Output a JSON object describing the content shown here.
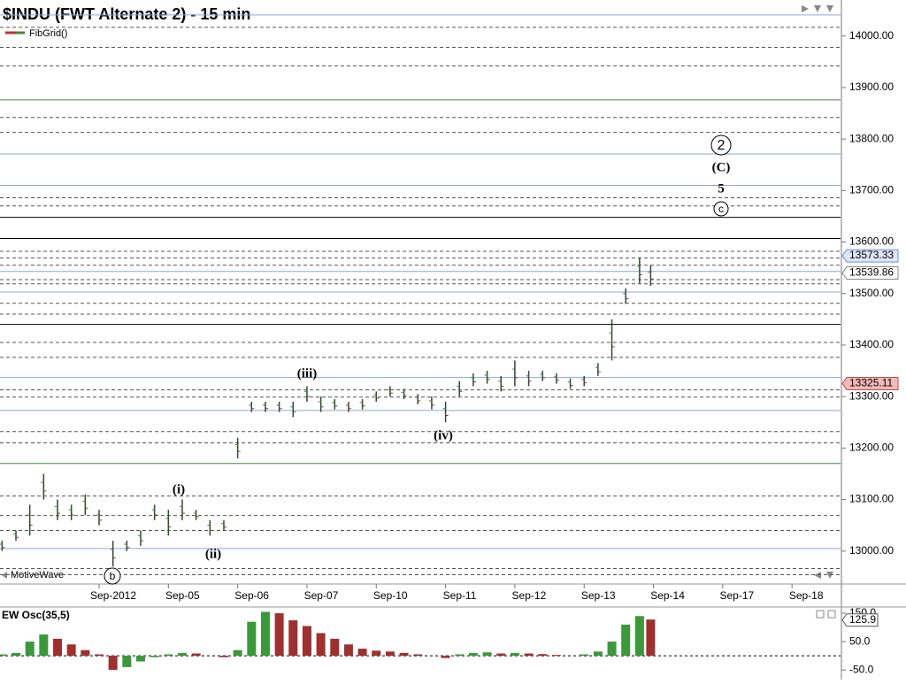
{
  "chart_data": [
    {
      "type": "ohlc",
      "title": "$INDU (FWT Alternate 2) - 15 min",
      "legend": "FibGrid()",
      "watermark": "MotiveWave",
      "xlim": [
        -1.43,
        10.7
      ],
      "ylim": [
        12936,
        14070
      ],
      "xticks": [
        {
          "value": 0,
          "label": "Sep-2012"
        },
        {
          "value": 1,
          "label": "Sep-05"
        },
        {
          "value": 2,
          "label": "Sep-06"
        },
        {
          "value": 3,
          "label": "Sep-07"
        },
        {
          "value": 4,
          "label": "Sep-10"
        },
        {
          "value": 5,
          "label": "Sep-11"
        },
        {
          "value": 6,
          "label": "Sep-12"
        },
        {
          "value": 7,
          "label": "Sep-13"
        },
        {
          "value": 8,
          "label": "Sep-14"
        },
        {
          "value": 9,
          "label": "Sep-17"
        },
        {
          "value": 10,
          "label": "Sep-18"
        }
      ],
      "yticks": [
        {
          "value": 13000,
          "label": "13000.00"
        },
        {
          "value": 13100,
          "label": "13100.00"
        },
        {
          "value": 13200,
          "label": "13200.00"
        },
        {
          "value": 13300,
          "label": "13300.00"
        },
        {
          "value": 13400,
          "label": "13400.00"
        },
        {
          "value": 13500,
          "label": "13500.00"
        },
        {
          "value": 13600,
          "label": "13600.00"
        },
        {
          "value": 13700,
          "label": "13700.00"
        },
        {
          "value": 13800,
          "label": "13800.00"
        },
        {
          "value": 13900,
          "label": "13900.00"
        },
        {
          "value": 14000,
          "label": "14000.00"
        }
      ],
      "x": [
        -1.4,
        -1.2,
        -1.0,
        -0.8,
        -0.6,
        -0.4,
        -0.2,
        0.0,
        0.2,
        0.4,
        0.6,
        0.8,
        1.0,
        1.2,
        1.4,
        1.6,
        1.8,
        2.0,
        2.2,
        2.4,
        2.6,
        2.8,
        3.0,
        3.2,
        3.4,
        3.6,
        3.8,
        4.0,
        4.2,
        4.4,
        4.6,
        4.8,
        5.0,
        5.2,
        5.4,
        5.6,
        5.8,
        6.0,
        6.2,
        6.4,
        6.6,
        6.8,
        7.0,
        7.2,
        7.4,
        7.6,
        7.8,
        7.96
      ],
      "high": [
        13020,
        13040,
        13090,
        13150,
        13100,
        13090,
        13110,
        13080,
        13020,
        13020,
        13040,
        13090,
        13080,
        13100,
        13080,
        13060,
        13060,
        13220,
        13290,
        13290,
        13290,
        13290,
        13320,
        13300,
        13295,
        13290,
        13295,
        13310,
        13320,
        13315,
        13305,
        13300,
        13290,
        13330,
        13345,
        13350,
        13340,
        13370,
        13350,
        13350,
        13345,
        13335,
        13340,
        13365,
        13450,
        13510,
        13570,
        13555
      ],
      "low": [
        13000,
        13020,
        13030,
        13100,
        13060,
        13060,
        13070,
        13050,
        12970,
        13000,
        13010,
        13060,
        13030,
        13060,
        13060,
        13030,
        13040,
        13180,
        13270,
        13270,
        13270,
        13260,
        13290,
        13270,
        13275,
        13270,
        13275,
        13290,
        13300,
        13295,
        13285,
        13275,
        13250,
        13300,
        13320,
        13325,
        13310,
        13320,
        13320,
        13330,
        13325,
        13315,
        13320,
        13340,
        13370,
        13480,
        13520,
        13515
      ],
      "color": "#2b4d2b",
      "level_groups": [
        {
          "color": "#8aa6e0",
          "dash": false,
          "values": [
            14041,
            13771,
            13710,
            13543,
            13503,
            13337,
            13273,
            13005
          ]
        },
        {
          "color": "#3c8c3c",
          "dash": false,
          "values": [
            13876,
            13170
          ]
        },
        {
          "color": "#000000",
          "dash": false,
          "values": [
            13648,
            13607,
            13440
          ]
        },
        {
          "color": "#555555",
          "dash": true,
          "values": [
            14017,
            13978,
            13942,
            13842,
            13813,
            13686,
            13670,
            13582,
            13569,
            13555,
            13527,
            13519,
            13481,
            13460,
            13405,
            13376,
            13313,
            13299,
            13232,
            13210,
            13107,
            13069,
            13040,
            12966,
            12954
          ]
        }
      ],
      "price_markers": [
        {
          "value": 13573.33,
          "color": "#dde6f5",
          "edge": "#6f8fd6"
        },
        {
          "value": 13539.86,
          "color": "#ffffff",
          "edge": "#888888"
        },
        {
          "value": 13325.11,
          "color": "#f4b8b8",
          "edge": "#c05050"
        }
      ],
      "annotations": [
        "(i)",
        "(ii)",
        "(iii)",
        "(iv)",
        "b",
        "2",
        "(C)",
        "5",
        "c"
      ]
    },
    {
      "type": "histogram",
      "title": "EW Osc(35,5)",
      "xlim": [
        -1.43,
        10.7
      ],
      "ylim": [
        -84,
        172
      ],
      "yticks": [
        {
          "value": 150,
          "label": "150.0"
        },
        {
          "value": 50,
          "label": "50.0"
        },
        {
          "value": -50,
          "label": "-50.0"
        }
      ],
      "x": [
        -1.4,
        -1.2,
        -1.0,
        -0.8,
        -0.6,
        -0.4,
        -0.2,
        0.0,
        0.2,
        0.4,
        0.6,
        0.8,
        1.0,
        1.2,
        1.4,
        1.6,
        1.8,
        2.0,
        2.2,
        2.4,
        2.6,
        2.8,
        3.0,
        3.2,
        3.4,
        3.6,
        3.8,
        4.0,
        4.2,
        4.4,
        4.6,
        4.8,
        5.0,
        5.2,
        5.4,
        5.6,
        5.8,
        6.0,
        6.2,
        6.4,
        6.6,
        6.8,
        7.0,
        7.2,
        7.4,
        7.6,
        7.8,
        7.96
      ],
      "values": [
        5,
        10,
        50,
        75,
        60,
        40,
        20,
        5,
        -50,
        -40,
        -20,
        -5,
        5,
        10,
        8,
        0,
        -5,
        20,
        120,
        155,
        150,
        125,
        105,
        80,
        60,
        40,
        25,
        18,
        15,
        10,
        5,
        0,
        -8,
        5,
        10,
        12,
        8,
        10,
        8,
        6,
        3,
        0,
        5,
        15,
        50,
        110,
        140,
        128
      ],
      "up_color": "#3a9a3a",
      "down_color": "#a03030",
      "marker": 125.9
    }
  ],
  "watermark_note": null
}
